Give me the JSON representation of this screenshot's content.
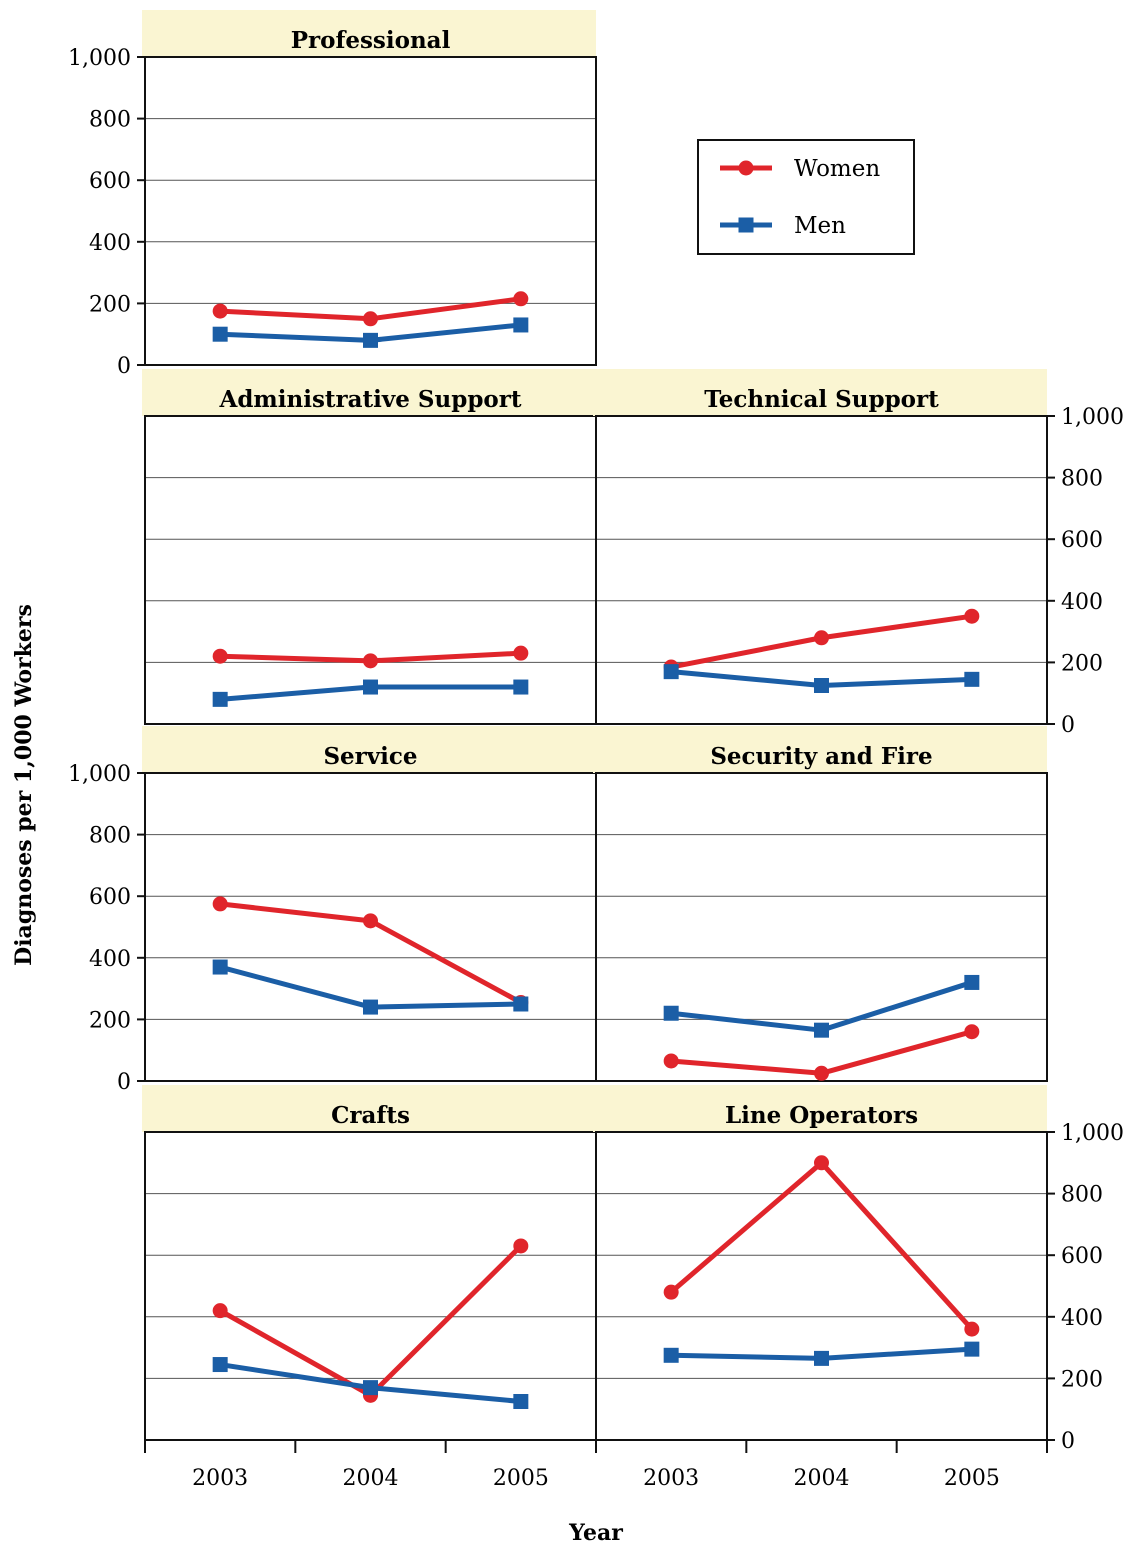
{
  "chart_data": {
    "type": "line",
    "xlabel": "Year",
    "ylabel": "Diagnoses per 1,000 Workers",
    "x": [
      "2003",
      "2004",
      "2005"
    ],
    "ylim": [
      0,
      1000
    ],
    "yticks": [
      "0",
      "200",
      "400",
      "600",
      "800",
      "1,000"
    ],
    "legend": {
      "placement": "right of Professional panel",
      "entries": [
        {
          "name": "Women",
          "color": "#e0252b",
          "marker": "circle"
        },
        {
          "name": "Men",
          "color": "#1b5ea6",
          "marker": "square"
        }
      ]
    },
    "panels": [
      {
        "title": "Professional",
        "series": [
          {
            "name": "Women",
            "values": [
              175,
              150,
              215
            ]
          },
          {
            "name": "Men",
            "values": [
              100,
              80,
              130
            ]
          }
        ]
      },
      {
        "title": "Administrative Support",
        "series": [
          {
            "name": "Women",
            "values": [
              220,
              205,
              230
            ]
          },
          {
            "name": "Men",
            "values": [
              80,
              120,
              120
            ]
          }
        ]
      },
      {
        "title": "Technical Support",
        "series": [
          {
            "name": "Women",
            "values": [
              185,
              280,
              350
            ]
          },
          {
            "name": "Men",
            "values": [
              170,
              125,
              145
            ]
          }
        ]
      },
      {
        "title": "Service",
        "series": [
          {
            "name": "Women",
            "values": [
              575,
              520,
              255
            ]
          },
          {
            "name": "Men",
            "values": [
              370,
              240,
              250
            ]
          }
        ]
      },
      {
        "title": "Security and Fire",
        "series": [
          {
            "name": "Women",
            "values": [
              65,
              25,
              160
            ]
          },
          {
            "name": "Men",
            "values": [
              220,
              165,
              320
            ]
          }
        ]
      },
      {
        "title": "Crafts",
        "series": [
          {
            "name": "Women",
            "values": [
              420,
              145,
              630
            ]
          },
          {
            "name": "Men",
            "values": [
              245,
              170,
              125
            ]
          }
        ]
      },
      {
        "title": "Line Operators",
        "series": [
          {
            "name": "Women",
            "values": [
              480,
              900,
              360
            ]
          },
          {
            "name": "Men",
            "values": [
              275,
              265,
              295
            ]
          }
        ]
      }
    ]
  }
}
